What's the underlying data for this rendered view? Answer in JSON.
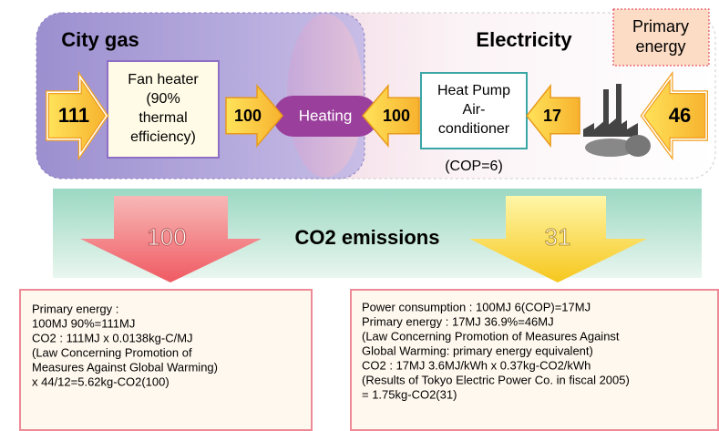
{
  "left_panel": {
    "title": "City gas",
    "input": 111,
    "device": [
      "Fan heater",
      "(90%",
      "thermal",
      "efficiency)"
    ],
    "output": 100
  },
  "center": "Heating",
  "right_panel": {
    "title": "Electricity",
    "primary_label": [
      "Primary",
      "energy"
    ],
    "primary_value": 46,
    "input": 17,
    "device": [
      "Heat Pump",
      "Air-",
      "conditioner"
    ],
    "device_note": "(COP=6)",
    "output": 100
  },
  "emissions": {
    "label": "CO2 emissions",
    "city_gas": 100,
    "electricity": 31
  },
  "notes": {
    "city_gas": [
      "Primary energy :",
      "100MJ  90%=111MJ",
      "CO2 : 111MJ x 0.0138kg-C/MJ",
      "(Law Concerning Promotion of",
      "Measures Against Global Warming)",
      "x 44/12=5.62kg-CO2(100)"
    ],
    "electricity": [
      "Power consumption : 100MJ  6(COP)=17MJ",
      "Primary energy : 17MJ  36.9%=46MJ",
      "(Law Concerning Promotion of Measures Against",
      "Global Warming: primary energy equivalent)",
      "CO2 : 17MJ  3.6MJ/kWh x 0.37kg-CO2/kWh",
      "(Results of Tokyo Electric Power Co. in fiscal 2005)",
      "= 1.75kg-CO2(31)"
    ]
  }
}
